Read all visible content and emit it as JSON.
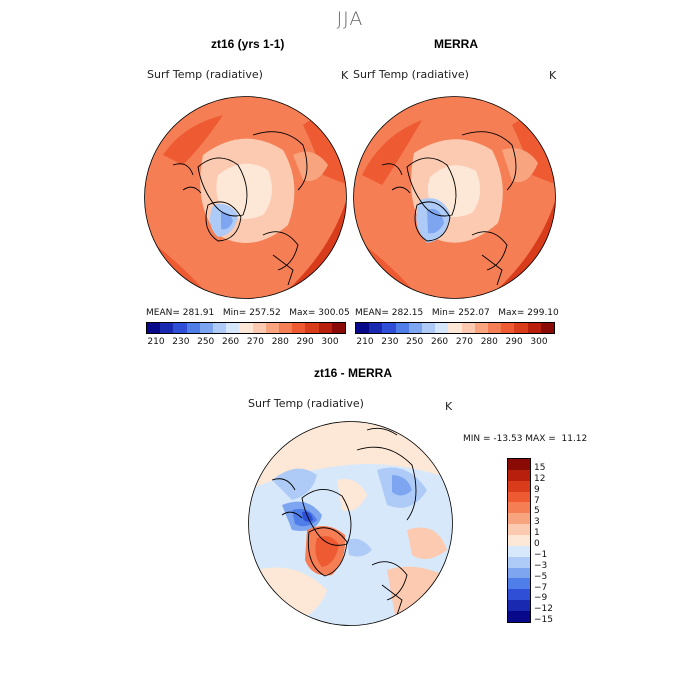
{
  "season": "JJA",
  "panels": [
    {
      "title": "zt16 (yrs 1-1)",
      "variable": "Surf Temp (radiative)",
      "unit": "K",
      "stats": "MEAN= 281.91   Min= 257.52   Max= 300.05"
    },
    {
      "title": "MERRA",
      "variable": "Surf Temp (radiative)",
      "unit": "K",
      "stats": "MEAN= 282.15   Min= 252.07   Max= 299.10"
    }
  ],
  "diff": {
    "title": "zt16 - MERRA",
    "variable": "Surf Temp (radiative)",
    "unit": "K",
    "minmax": "MIN = -13.53 MAX =  11.12"
  },
  "abs_colorbar": {
    "labels": [
      "210",
      "230",
      "250",
      "260",
      "270",
      "280",
      "290",
      "300"
    ],
    "colors": [
      "#08088a",
      "#1a2ab0",
      "#2f4fd6",
      "#4f7ee8",
      "#7ea6f0",
      "#aecbf7",
      "#d6e6fb",
      "#fde7d6",
      "#fbcab0",
      "#f8a47f",
      "#f57e55",
      "#ee5a32",
      "#d93c1a",
      "#b81f0c",
      "#8a0a05"
    ]
  },
  "diff_colorbar": {
    "labels": [
      "15",
      "12",
      "9",
      "7",
      "5",
      "3",
      "1",
      "0",
      "−1",
      "−3",
      "−5",
      "−7",
      "−9",
      "−12",
      "−15"
    ],
    "colors": [
      "#8a0a05",
      "#b81f0c",
      "#d93c1a",
      "#ee5a32",
      "#f57e55",
      "#f8a47f",
      "#fbcab0",
      "#fde7d6",
      "#d8e8fb",
      "#aecbf7",
      "#7ea6f0",
      "#4f7ee8",
      "#2f4fd6",
      "#1a2ab0",
      "#08088a"
    ]
  }
}
